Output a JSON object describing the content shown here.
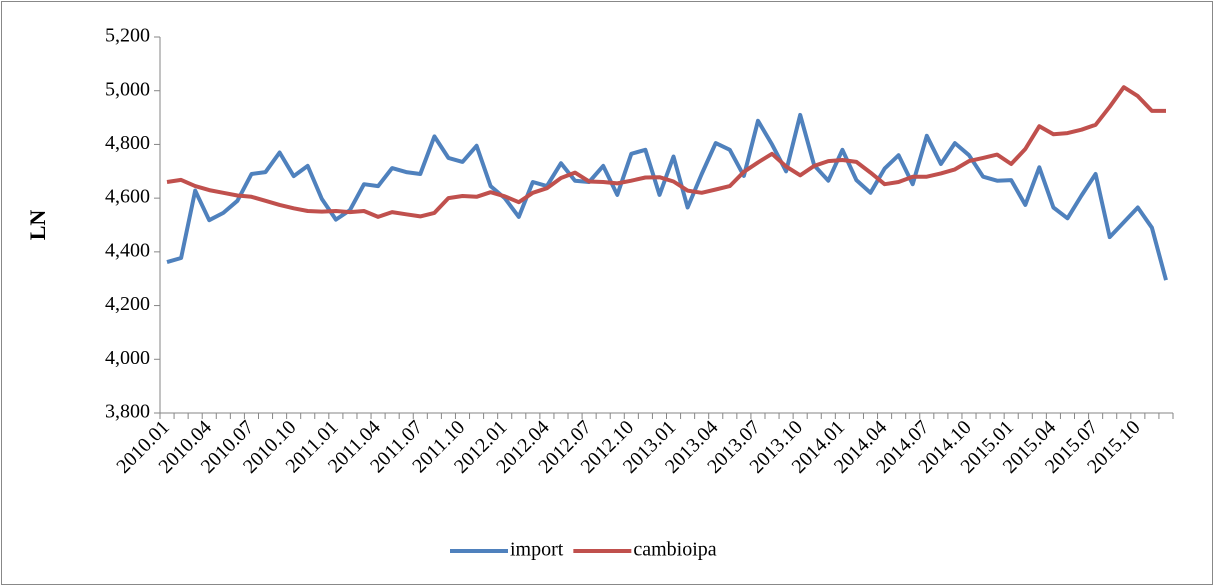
{
  "chart_data": {
    "type": "line",
    "y_label": "LN",
    "categories": [
      "2010.01",
      null,
      null,
      "2010.04",
      null,
      null,
      "2010.07",
      null,
      null,
      "2010.10",
      null,
      null,
      "2011.01",
      null,
      null,
      "2011.04",
      null,
      null,
      "2011.07",
      null,
      null,
      "2011.10",
      null,
      null,
      "2012.01",
      null,
      null,
      "2012.04",
      null,
      null,
      "2012.07",
      null,
      null,
      "2012.10",
      null,
      null,
      "2013.01",
      null,
      null,
      "2013.04",
      null,
      null,
      "2013.07",
      null,
      null,
      "2013.10",
      null,
      null,
      "2014.01",
      null,
      null,
      "2014.04",
      null,
      null,
      "2014.07",
      null,
      null,
      "2014.10",
      null,
      null,
      "2015.01",
      null,
      null,
      "2015.04",
      null,
      null,
      "2015.07",
      null,
      null,
      "2015.10",
      null,
      null
    ],
    "series": [
      {
        "name": "import",
        "color": "#4f81bd",
        "values": [
          4362,
          4377,
          4628,
          4518,
          4545,
          4590,
          4690,
          4697,
          4770,
          4682,
          4720,
          4597,
          4520,
          4555,
          4652,
          4645,
          4712,
          4697,
          4690,
          4830,
          4750,
          4735,
          4795,
          4645,
          4600,
          4530,
          4660,
          4645,
          4730,
          4665,
          4660,
          4720,
          4612,
          4765,
          4780,
          4612,
          4755,
          4565,
          4690,
          4805,
          4780,
          4683,
          4888,
          4800,
          4700,
          4910,
          4722,
          4665,
          4780,
          4667,
          4620,
          4710,
          4760,
          4652,
          4832,
          4727,
          4805,
          4760,
          4680,
          4665,
          4667,
          4575,
          4715,
          4565,
          4525,
          4610,
          4690,
          4455,
          4510,
          4565,
          4490,
          4295
        ]
      },
      {
        "name": "cambioipa",
        "color": "#c0504d",
        "values": [
          4660,
          4668,
          4645,
          4630,
          4620,
          4610,
          4605,
          4590,
          4575,
          4562,
          4552,
          4550,
          4552,
          4548,
          4552,
          4530,
          4548,
          4540,
          4532,
          4545,
          4600,
          4608,
          4605,
          4622,
          4607,
          4585,
          4620,
          4637,
          4675,
          4695,
          4662,
          4660,
          4655,
          4665,
          4677,
          4678,
          4662,
          4628,
          4620,
          4632,
          4645,
          4698,
          4733,
          4765,
          4718,
          4685,
          4720,
          4738,
          4742,
          4735,
          4695,
          4652,
          4660,
          4680,
          4680,
          4692,
          4707,
          4738,
          4750,
          4762,
          4727,
          4783,
          4868,
          4838,
          4842,
          4855,
          4873,
          4940,
          5013,
          4980,
          4925,
          4925
        ]
      }
    ],
    "ylim": [
      3800,
      5200
    ],
    "yticks": [
      {
        "value": 3800,
        "label": "3,800"
      },
      {
        "value": 4000,
        "label": "4,000"
      },
      {
        "value": 4200,
        "label": "4,200"
      },
      {
        "value": 4400,
        "label": "4,400"
      },
      {
        "value": 4600,
        "label": "4,600"
      },
      {
        "value": 4800,
        "label": "4,800"
      },
      {
        "value": 5000,
        "label": "5,000"
      },
      {
        "value": 5200,
        "label": "5,200"
      }
    ],
    "grid": false,
    "legend": "bottom"
  }
}
